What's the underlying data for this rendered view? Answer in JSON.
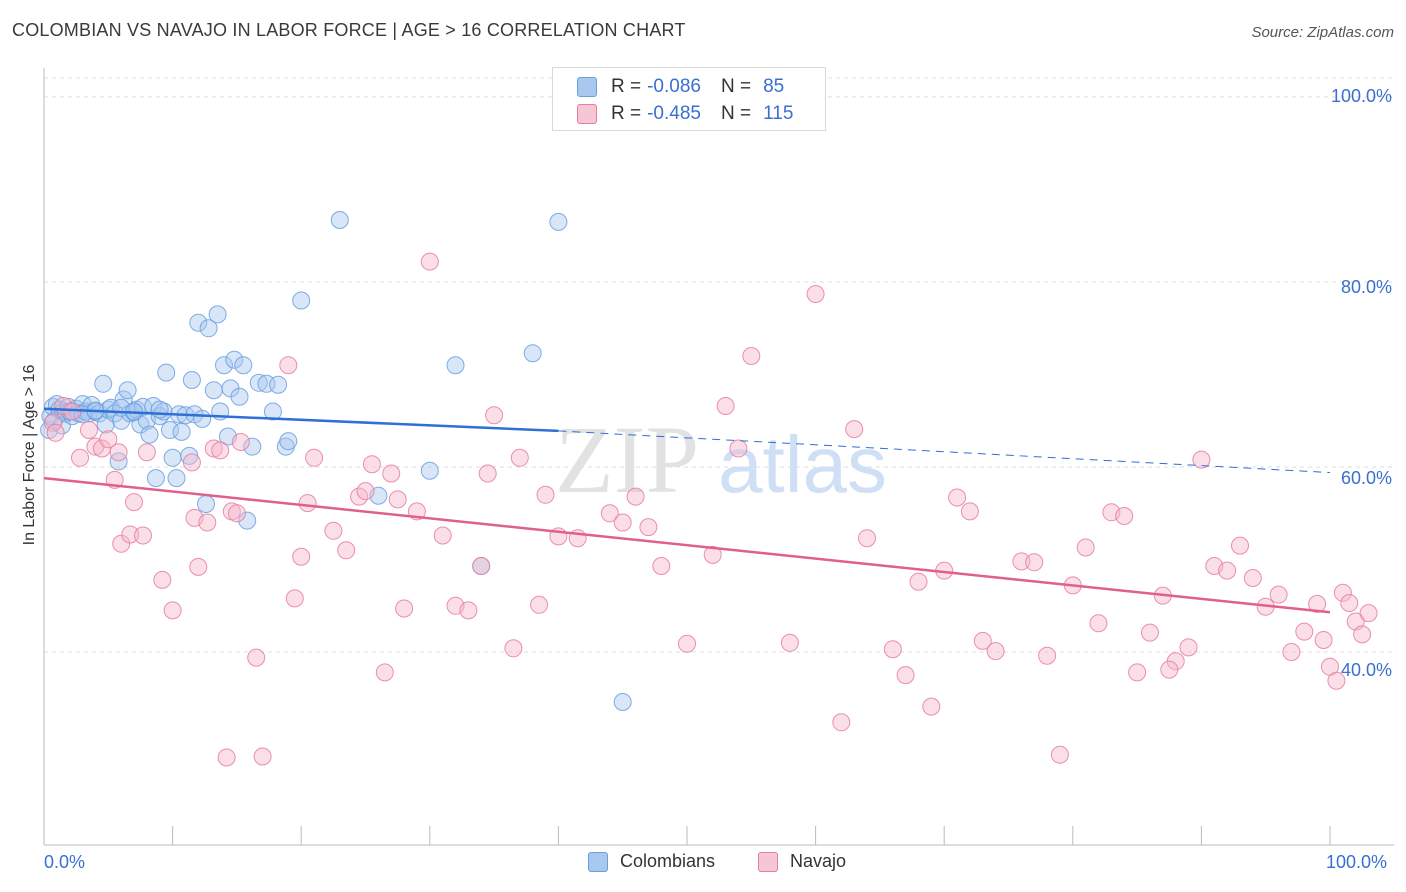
{
  "header": {
    "title": "COLOMBIAN VS NAVAJO IN LABOR FORCE | AGE > 16 CORRELATION CHART",
    "source": "Source: ZipAtlas.com"
  },
  "watermark": {
    "zip": "ZIP",
    "atlas": "atlas"
  },
  "legend": {
    "rows": [
      {
        "r_label": "R = ",
        "r_value": "-0.086",
        "n_label": "N = ",
        "n_value": "85",
        "color": "#a9c8f0"
      },
      {
        "r_label": "R = ",
        "r_value": "-0.485",
        "n_label": "N = ",
        "n_value": "115",
        "color": "#f5b8cb"
      }
    ]
  },
  "bottom_legend": [
    {
      "label": "Colombians",
      "color": "#a9c8f0"
    },
    {
      "label": "Navajo",
      "color": "#f5b8cb"
    }
  ],
  "axis": {
    "x_min_label": "0.0%",
    "x_max_label": "100.0%",
    "y_ticks": [
      "100.0%",
      "80.0%",
      "60.0%",
      "40.0%"
    ],
    "ylabel": "In Labor Force | Age > 16"
  },
  "chart_data": {
    "type": "scatter",
    "title": "COLOMBIAN VS NAVAJO IN LABOR FORCE | AGE > 16 CORRELATION CHART",
    "xlabel": "",
    "ylabel": "In Labor Force | Age > 16",
    "xlim": [
      0,
      100
    ],
    "ylim": [
      20,
      100
    ],
    "y_gridlines": [
      40,
      60,
      80,
      100
    ],
    "series": [
      {
        "name": "Colombians",
        "color": "#6a9fe0",
        "fill": "#a9c8f0",
        "trend": {
          "x0": 0,
          "y0": 66.3,
          "x1": 40,
          "y1": 63.9,
          "dashed_to_x": 100,
          "dashed_to_y": 59.4
        },
        "points": [
          [
            0.4,
            64
          ],
          [
            0.5,
            65.5
          ],
          [
            0.7,
            66.5
          ],
          [
            0.8,
            65
          ],
          [
            1,
            66.8
          ],
          [
            1.2,
            66.2
          ],
          [
            1.4,
            64.5
          ],
          [
            1.5,
            66
          ],
          [
            1.7,
            65.8
          ],
          [
            1.9,
            66.5
          ],
          [
            2.2,
            65.5
          ],
          [
            2.5,
            66.3
          ],
          [
            2.7,
            65.8
          ],
          [
            3,
            66.8
          ],
          [
            3.2,
            66
          ],
          [
            3.5,
            65.8
          ],
          [
            3.7,
            66.7
          ],
          [
            4,
            66
          ],
          [
            4.3,
            65.8
          ],
          [
            4.6,
            69
          ],
          [
            4.8,
            64.6
          ],
          [
            5,
            66.2
          ],
          [
            5.2,
            66.4
          ],
          [
            5.5,
            65.8
          ],
          [
            5.8,
            60.6
          ],
          [
            6,
            65
          ],
          [
            6.2,
            67.3
          ],
          [
            6.5,
            68.3
          ],
          [
            6.7,
            65.8
          ],
          [
            7,
            65.9
          ],
          [
            7.2,
            66.2
          ],
          [
            7.5,
            64.6
          ],
          [
            7.7,
            66.5
          ],
          [
            8,
            65
          ],
          [
            8.2,
            63.5
          ],
          [
            8.5,
            66.6
          ],
          [
            8.7,
            58.8
          ],
          [
            9,
            65.5
          ],
          [
            9.3,
            66
          ],
          [
            9.5,
            70.2
          ],
          [
            9.8,
            64
          ],
          [
            10,
            61
          ],
          [
            10.3,
            58.8
          ],
          [
            10.5,
            65.7
          ],
          [
            10.7,
            63.8
          ],
          [
            11,
            65.6
          ],
          [
            11.3,
            61.2
          ],
          [
            11.5,
            69.4
          ],
          [
            11.7,
            65.7
          ],
          [
            12,
            75.6
          ],
          [
            12.3,
            65.2
          ],
          [
            12.6,
            56
          ],
          [
            12.8,
            75
          ],
          [
            13.2,
            68.3
          ],
          [
            13.5,
            76.5
          ],
          [
            13.7,
            66
          ],
          [
            14,
            71
          ],
          [
            14.3,
            63.3
          ],
          [
            14.5,
            68.5
          ],
          [
            14.8,
            71.6
          ],
          [
            15.2,
            67.6
          ],
          [
            15.5,
            71
          ],
          [
            15.8,
            54.2
          ],
          [
            16.2,
            62.2
          ],
          [
            16.7,
            69.1
          ],
          [
            17.3,
            69
          ],
          [
            17.8,
            66
          ],
          [
            18.2,
            68.9
          ],
          [
            18.8,
            62.2
          ],
          [
            19,
            62.8
          ],
          [
            20,
            78
          ],
          [
            23,
            86.7
          ],
          [
            26,
            56.9
          ],
          [
            30,
            59.6
          ],
          [
            32,
            71
          ],
          [
            34,
            49.3
          ],
          [
            38,
            72.3
          ],
          [
            40,
            86.5
          ],
          [
            45,
            34.6
          ],
          [
            2,
            66
          ],
          [
            3,
            65.7
          ],
          [
            4,
            66.1
          ],
          [
            6,
            66.4
          ],
          [
            7,
            66.0
          ],
          [
            9,
            66.2
          ]
        ]
      },
      {
        "name": "Navajo",
        "color": "#e87da0",
        "fill": "#f5b8cb",
        "trend": {
          "x0": 0,
          "y0": 58.8,
          "x1": 100,
          "y1": 44.3
        },
        "points": [
          [
            0.7,
            64.8
          ],
          [
            0.9,
            63.7
          ],
          [
            1.5,
            66.6
          ],
          [
            2.2,
            66
          ],
          [
            2.8,
            61
          ],
          [
            3.5,
            64
          ],
          [
            4,
            62.2
          ],
          [
            4.5,
            62
          ],
          [
            5,
            63
          ],
          [
            5.5,
            58.6
          ],
          [
            5.8,
            61.6
          ],
          [
            6,
            51.7
          ],
          [
            6.7,
            52.7
          ],
          [
            7,
            56.2
          ],
          [
            7.7,
            52.6
          ],
          [
            8,
            61.6
          ],
          [
            9.2,
            47.8
          ],
          [
            10,
            44.5
          ],
          [
            11.5,
            60.5
          ],
          [
            11.7,
            54.5
          ],
          [
            12,
            49.2
          ],
          [
            12.7,
            54
          ],
          [
            13.2,
            62
          ],
          [
            13.7,
            61.8
          ],
          [
            14.2,
            28.6
          ],
          [
            14.6,
            55.2
          ],
          [
            15,
            55
          ],
          [
            15.3,
            62.7
          ],
          [
            16.5,
            39.4
          ],
          [
            17,
            28.7
          ],
          [
            19,
            71
          ],
          [
            19.5,
            45.8
          ],
          [
            20,
            50.3
          ],
          [
            20.5,
            56.1
          ],
          [
            21,
            61
          ],
          [
            22.5,
            53.1
          ],
          [
            23.5,
            51
          ],
          [
            24.5,
            56.8
          ],
          [
            25,
            57.4
          ],
          [
            25.5,
            60.3
          ],
          [
            26.5,
            37.8
          ],
          [
            27,
            59.3
          ],
          [
            27.5,
            56.5
          ],
          [
            28,
            44.7
          ],
          [
            29,
            55.2
          ],
          [
            30,
            82.2
          ],
          [
            31,
            52.6
          ],
          [
            32,
            45
          ],
          [
            33,
            44.5
          ],
          [
            34,
            49.3
          ],
          [
            34.5,
            59.3
          ],
          [
            35,
            65.6
          ],
          [
            36.5,
            40.4
          ],
          [
            37,
            61
          ],
          [
            38.5,
            45.1
          ],
          [
            39,
            57
          ],
          [
            40,
            52.5
          ],
          [
            41.5,
            52.3
          ],
          [
            44,
            55
          ],
          [
            45,
            54
          ],
          [
            46,
            56.8
          ],
          [
            47,
            53.5
          ],
          [
            48,
            49.3
          ],
          [
            50,
            40.9
          ],
          [
            52,
            50.5
          ],
          [
            53,
            66.6
          ],
          [
            54,
            62
          ],
          [
            55,
            72
          ],
          [
            60,
            78.7
          ],
          [
            62,
            32.4
          ],
          [
            63,
            64.1
          ],
          [
            64,
            52.3
          ],
          [
            66,
            40.3
          ],
          [
            67,
            37.5
          ],
          [
            68,
            47.6
          ],
          [
            69,
            34.1
          ],
          [
            70,
            48.8
          ],
          [
            71,
            56.7
          ],
          [
            72,
            55.2
          ],
          [
            73,
            41.2
          ],
          [
            74,
            40.1
          ],
          [
            76,
            49.8
          ],
          [
            77,
            49.7
          ],
          [
            78,
            39.6
          ],
          [
            79,
            28.9
          ],
          [
            80,
            47.2
          ],
          [
            81,
            51.3
          ],
          [
            82,
            43.1
          ],
          [
            83,
            55.1
          ],
          [
            84,
            54.7
          ],
          [
            85,
            37.8
          ],
          [
            86,
            42.1
          ],
          [
            87,
            46.1
          ],
          [
            88,
            39
          ],
          [
            89,
            40.5
          ],
          [
            90,
            60.8
          ],
          [
            91,
            49.3
          ],
          [
            92,
            48.8
          ],
          [
            93,
            51.5
          ],
          [
            94,
            48
          ],
          [
            95,
            44.9
          ],
          [
            96,
            46.2
          ],
          [
            97,
            40
          ],
          [
            98,
            42.2
          ],
          [
            99,
            45.2
          ],
          [
            99.5,
            41.3
          ],
          [
            100,
            38.4
          ],
          [
            100.5,
            36.9
          ],
          [
            101,
            46.4
          ],
          [
            101.5,
            45.3
          ],
          [
            102,
            43.3
          ],
          [
            102.5,
            41.9
          ],
          [
            103,
            44.2
          ],
          [
            58,
            41
          ],
          [
            87.5,
            38.1
          ]
        ]
      }
    ]
  }
}
